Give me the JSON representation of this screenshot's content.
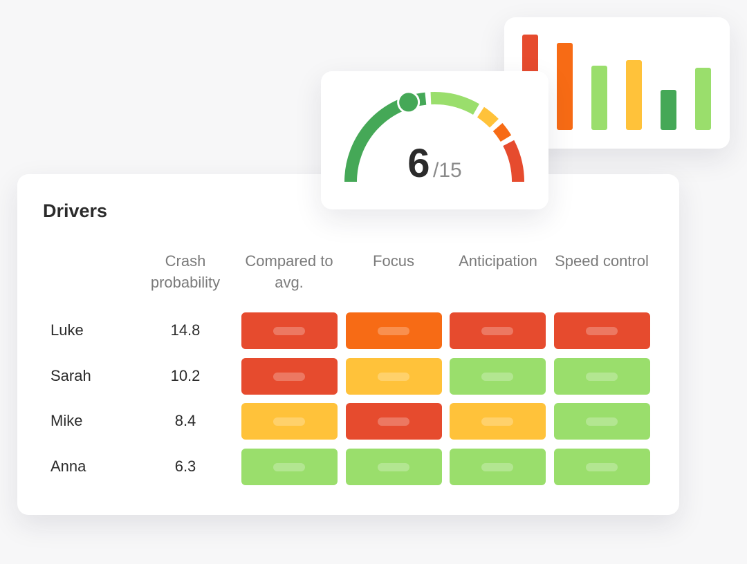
{
  "colors": {
    "red": "#E64B2E",
    "orange": "#F76B15",
    "yellow": "#FFC23A",
    "light_green": "#9ADE6C",
    "dark_green": "#45A857"
  },
  "bar_chart": {
    "bars": [
      {
        "value": 138,
        "color": "red"
      },
      {
        "value": 126,
        "color": "orange"
      },
      {
        "value": 93,
        "color": "light_green"
      },
      {
        "value": 101,
        "color": "yellow"
      },
      {
        "value": 58,
        "color": "dark_green"
      },
      {
        "value": 90,
        "color": "light_green"
      }
    ]
  },
  "gauge": {
    "value": "6",
    "max_label": "/15",
    "score": 6,
    "max": 15,
    "segments": [
      {
        "from": 0,
        "to": 7,
        "color": "dark_green"
      },
      {
        "from": 7.3,
        "to": 10,
        "color": "light_green"
      },
      {
        "from": 10.3,
        "to": 11.3,
        "color": "yellow"
      },
      {
        "from": 11.6,
        "to": 12.4,
        "color": "orange"
      },
      {
        "from": 12.7,
        "to": 15,
        "color": "red"
      }
    ]
  },
  "table": {
    "title": "Drivers",
    "headers": [
      "Crash probability",
      "Compared to avg.",
      "Focus",
      "Anticipation",
      "Speed control"
    ],
    "rows": [
      {
        "name": "Luke",
        "value": "14.8",
        "cells": [
          "red",
          "orange",
          "red",
          "red"
        ]
      },
      {
        "name": "Sarah",
        "value": "10.2",
        "cells": [
          "red",
          "yellow",
          "light_green",
          "light_green"
        ]
      },
      {
        "name": "Mike",
        "value": "8.4",
        "cells": [
          "yellow",
          "red",
          "yellow",
          "light_green"
        ]
      },
      {
        "name": "Anna",
        "value": "6.3",
        "cells": [
          "light_green",
          "light_green",
          "light_green",
          "light_green"
        ]
      }
    ]
  }
}
